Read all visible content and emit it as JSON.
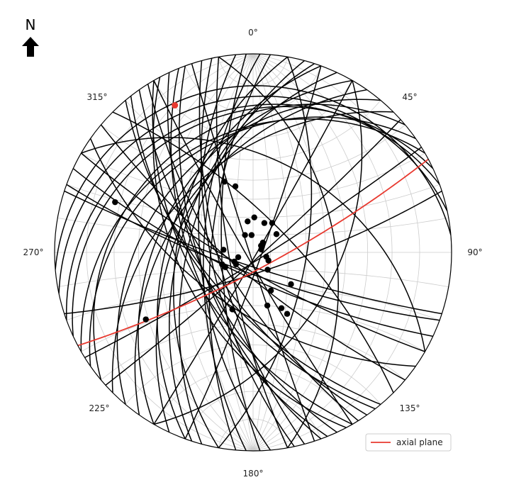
{
  "chart_data": {
    "type": "stereonet",
    "projection": "equal-angle, lower hemisphere",
    "north_indicator": "N",
    "direction_labels": [
      "0°",
      "45°",
      "90°",
      "135°",
      "180°",
      "225°",
      "270°",
      "315°"
    ],
    "grid": true,
    "legend_position": "bottom-right",
    "legend": [
      {
        "label": "axial plane",
        "color": "#e8392f"
      }
    ],
    "colors": {
      "planes": "#000000",
      "poles": "#000000",
      "axial_plane": "#e8392f",
      "axial_pole": "#e8392f",
      "grid": "#cccccc"
    },
    "axial_plane": {
      "strike_deg": 62,
      "dip_deg": 80
    },
    "axial_pole": {
      "trend_deg": 332,
      "plunge_deg": 10
    },
    "poles": [
      [
        2,
        70
      ],
      [
        21,
        72
      ],
      [
        33,
        70
      ],
      [
        45,
        82
      ],
      [
        50,
        84
      ],
      [
        52,
        73
      ],
      [
        58,
        84
      ],
      [
        70,
        85
      ],
      [
        108,
        82
      ],
      [
        118,
        80
      ],
      [
        130,
        62
      ],
      [
        140,
        77
      ],
      [
        151,
        51
      ],
      [
        153,
        55
      ],
      [
        155,
        66
      ],
      [
        165,
        59
      ],
      [
        200,
        56
      ],
      [
        235,
        78
      ],
      [
        238,
        25
      ],
      [
        242,
        72
      ],
      [
        244,
        78
      ],
      [
        249,
        71
      ],
      [
        252,
        81
      ],
      [
        275,
        73
      ],
      [
        290,
        17
      ],
      [
        335,
        79
      ],
      [
        338,
        48
      ],
      [
        345,
        52
      ],
      [
        350,
        72
      ],
      [
        355,
        80
      ]
    ],
    "planes": [
      [
        20,
        85
      ],
      [
        30,
        88
      ],
      [
        48,
        86
      ],
      [
        58,
        85
      ],
      [
        72,
        78
      ],
      [
        108,
        82
      ],
      [
        110,
        78
      ],
      [
        115,
        76
      ],
      [
        120,
        80
      ],
      [
        125,
        58
      ],
      [
        130,
        78
      ],
      [
        140,
        62
      ],
      [
        142,
        60
      ],
      [
        145,
        66
      ],
      [
        148,
        72
      ],
      [
        150,
        86
      ],
      [
        150,
        55
      ],
      [
        152,
        50
      ],
      [
        155,
        60
      ],
      [
        158,
        56
      ],
      [
        160,
        60
      ],
      [
        162,
        88
      ],
      [
        165,
        70
      ],
      [
        168,
        66
      ],
      [
        170,
        76
      ],
      [
        175,
        60
      ],
      [
        178,
        72
      ],
      [
        182,
        62
      ],
      [
        185,
        66
      ],
      [
        190,
        48
      ],
      [
        195,
        54
      ],
      [
        198,
        50
      ],
      [
        200,
        44
      ],
      [
        205,
        48
      ],
      [
        210,
        40
      ],
      [
        215,
        45
      ],
      [
        220,
        35
      ],
      [
        225,
        42
      ],
      [
        230,
        25
      ],
      [
        235,
        30
      ],
      [
        240,
        28
      ],
      [
        245,
        20
      ],
      [
        250,
        18
      ],
      [
        258,
        14
      ],
      [
        265,
        10
      ],
      [
        300,
        40
      ],
      [
        315,
        70
      ],
      [
        350,
        45
      ],
      [
        10,
        60
      ],
      [
        30,
        45
      ]
    ]
  }
}
